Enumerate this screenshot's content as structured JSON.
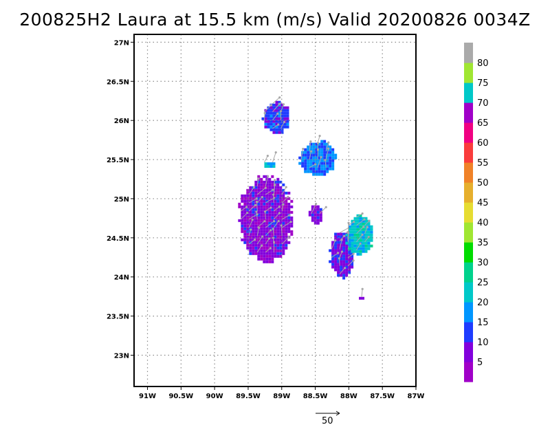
{
  "title": "200825H2 Laura at 15.5 km (m/s) Valid 20200826 0034Z",
  "map": {
    "x_ticks": [
      "91W",
      "90.5W",
      "90W",
      "89.5W",
      "89W",
      "88.5W",
      "88W",
      "87.5W",
      "87W"
    ],
    "x_values": [
      -91,
      -90.5,
      -90,
      -89.5,
      -89,
      -88.5,
      -88,
      -87.5,
      -87
    ],
    "y_ticks": [
      "23N",
      "23.5N",
      "24N",
      "24.5N",
      "25N",
      "25.5N",
      "26N",
      "26.5N",
      "27N"
    ],
    "y_values": [
      23,
      23.5,
      24,
      24.5,
      25,
      25.5,
      26,
      26.5,
      27
    ],
    "lon_range": [
      -91.2,
      -87.0
    ],
    "lat_range": [
      22.6,
      27.1
    ],
    "grid": "dotted"
  },
  "colorbar": {
    "labels": [
      "5",
      "10",
      "15",
      "20",
      "25",
      "30",
      "35",
      "40",
      "45",
      "50",
      "55",
      "60",
      "65",
      "70",
      "75",
      "80"
    ],
    "colors": [
      "#a000c8",
      "#8200dc",
      "#1e3cff",
      "#0096ff",
      "#00c8c8",
      "#00d28c",
      "#00dc00",
      "#a0e632",
      "#e6dc32",
      "#e6af2d",
      "#f08228",
      "#fa3c3c",
      "#f00082",
      "#a000c8",
      "#00c8c8",
      "#a0e632",
      "#aaaaaa"
    ]
  },
  "reference_vector": {
    "label": "50"
  },
  "regions": [
    {
      "lon": [
        -89.3,
        -88.9
      ],
      "lat": [
        25.85,
        26.25
      ],
      "speed": 12
    },
    {
      "lon": [
        -89.3,
        -89.1
      ],
      "lat": [
        25.4,
        25.5
      ],
      "speed": 20
    },
    {
      "lon": [
        -88.75,
        -88.2
      ],
      "lat": [
        25.3,
        25.75
      ],
      "speed": 16
    },
    {
      "lon": [
        -89.65,
        -88.85
      ],
      "lat": [
        24.2,
        25.3
      ],
      "speed": 7
    },
    {
      "lon": [
        -88.6,
        -88.4
      ],
      "lat": [
        24.7,
        24.95
      ],
      "speed": 8
    },
    {
      "lon": [
        -88.3,
        -87.95
      ],
      "lat": [
        24.0,
        24.6
      ],
      "speed": 9
    },
    {
      "lon": [
        -88.05,
        -87.65
      ],
      "lat": [
        24.3,
        24.8
      ],
      "speed": 22
    },
    {
      "lon": [
        -87.85,
        -87.8
      ],
      "lat": [
        23.72,
        23.78
      ],
      "speed": 7
    }
  ]
}
